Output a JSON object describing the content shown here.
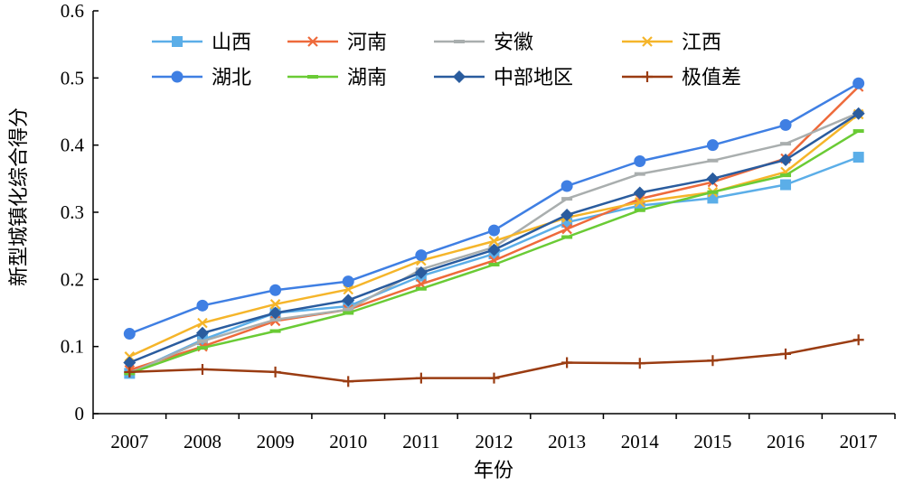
{
  "chart_data": {
    "type": "line",
    "title": "",
    "xlabel": "年份",
    "ylabel": "新型城镇化综合得分",
    "ylim": [
      0,
      0.6
    ],
    "yticks": [
      "0",
      "0.1",
      "0.2",
      "0.3",
      "0.4",
      "0.5",
      "0.6"
    ],
    "categories": [
      "2007",
      "2008",
      "2009",
      "2010",
      "2011",
      "2012",
      "2013",
      "2014",
      "2015",
      "2016",
      "2017"
    ],
    "grid": false,
    "legend_position": "top-left (inside plot, 4 columns x 2 rows)",
    "series": [
      {
        "name": "山西",
        "color": "#5BAEE8",
        "marker": "square",
        "values": [
          0.06,
          0.11,
          0.15,
          0.16,
          0.205,
          0.238,
          0.285,
          0.31,
          0.321,
          0.341,
          0.382
        ]
      },
      {
        "name": "河南",
        "color": "#EE6A3B",
        "marker": "x",
        "values": [
          0.065,
          0.1,
          0.138,
          0.155,
          0.193,
          0.228,
          0.275,
          0.32,
          0.345,
          0.38,
          0.487
        ]
      },
      {
        "name": "安徽",
        "color": "#A9AEAE",
        "marker": "dash",
        "values": [
          0.06,
          0.108,
          0.14,
          0.155,
          0.215,
          0.248,
          0.32,
          0.357,
          0.377,
          0.402,
          0.448
        ]
      },
      {
        "name": "江西",
        "color": "#F5B52A",
        "marker": "x",
        "values": [
          0.085,
          0.135,
          0.163,
          0.185,
          0.228,
          0.257,
          0.292,
          0.315,
          0.33,
          0.36,
          0.446
        ]
      },
      {
        "name": "湖北",
        "color": "#3F7FE3",
        "marker": "circle",
        "values": [
          0.119,
          0.161,
          0.184,
          0.197,
          0.236,
          0.273,
          0.339,
          0.376,
          0.4,
          0.43,
          0.492
        ]
      },
      {
        "name": "湖南",
        "color": "#6ACB35",
        "marker": "dash",
        "values": [
          0.06,
          0.098,
          0.123,
          0.15,
          0.186,
          0.222,
          0.263,
          0.303,
          0.33,
          0.355,
          0.421
        ]
      },
      {
        "name": "中部地区",
        "color": "#2A5C9E",
        "marker": "diamond",
        "values": [
          0.076,
          0.12,
          0.15,
          0.169,
          0.21,
          0.244,
          0.296,
          0.329,
          0.35,
          0.378,
          0.447
        ]
      },
      {
        "name": "极值差",
        "color": "#9A3C12",
        "marker": "plus",
        "values": [
          0.062,
          0.066,
          0.062,
          0.048,
          0.053,
          0.053,
          0.076,
          0.075,
          0.079,
          0.089,
          0.11
        ]
      }
    ]
  }
}
